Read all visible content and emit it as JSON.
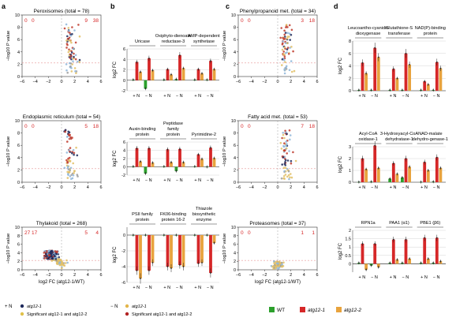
{
  "panel_letters": [
    "a",
    "b",
    "c",
    "d"
  ],
  "colors": {
    "wt": "#2ca02c",
    "atg12_1": "#d62728",
    "atg12_2": "#e8a33d",
    "gray_point": "#9e9e9e",
    "navy_point": "#1f2a5c",
    "sig_point": "#c0392b",
    "light_blue": "#8fb6d9",
    "gold_point": "#e2c066"
  },
  "volcano_axes": {
    "xlabel_main": "log",
    "xlabel_sub": "2",
    "xlabel_rest": " FC (atg12-1/WT)",
    "ylabel_pre": "−log",
    "ylabel_sub": "10",
    "ylabel_post": " P value",
    "xticks": [
      "−6",
      "−4",
      "−2",
      "0",
      "2",
      "4",
      "6"
    ],
    "yticks": [
      "0",
      "2",
      "4",
      "6",
      "8",
      "10"
    ]
  },
  "volcanos_a": [
    {
      "title": "Peroxisomes (total = 78)",
      "left_counts": [
        "0",
        "0"
      ],
      "right_counts": [
        "9",
        "38"
      ]
    },
    {
      "title": "Endoplasmic reticulum (total = 54)",
      "left_counts": [
        "0",
        "0"
      ],
      "right_counts": [
        "5",
        "18"
      ]
    },
    {
      "title": "Thylakoid (total = 268)",
      "left_counts": [
        "27",
        "17"
      ],
      "right_counts": [
        "5",
        "4"
      ]
    }
  ],
  "volcanos_c": [
    {
      "title": "Phenylpropanoid met. (total = 34)",
      "left_counts": [
        "0",
        "0"
      ],
      "right_counts": [
        "3",
        "18"
      ]
    },
    {
      "title": "Fatty acid met. (total = 53)",
      "left_counts": [
        "0",
        "0"
      ],
      "right_counts": [
        "7",
        "18"
      ]
    },
    {
      "title": "Proteasomes (total = 37)",
      "left_counts": [
        "0",
        "0"
      ],
      "right_counts": [
        "1",
        "1"
      ]
    }
  ],
  "bar_axis_label": {
    "pre": "log",
    "sub": "2",
    "post": " FC"
  },
  "bar_xlabels": [
    "+ N",
    "− N"
  ],
  "legend_a": {
    "n_plus": "+ N",
    "n_minus": "− N",
    "atg12_1": "atg12-1",
    "sig_both": "Significant atg12-1 and atg12-2"
  },
  "legend_bars": {
    "wt": "WT",
    "atg12_1": "atg12-1",
    "atg12_2": "atg12-2"
  },
  "chart_data": [
    {
      "type": "bar",
      "panel": "b1",
      "title": "Uricase",
      "ylim": [
        -2,
        6
      ],
      "yticks": [
        "-2",
        "0",
        "2",
        "4",
        "6"
      ],
      "categories": [
        "+ N",
        "− N"
      ],
      "series": [
        {
          "name": "WT",
          "values": [
            0.1,
            -1.6
          ]
        },
        {
          "name": "atg12-1",
          "values": [
            3.5,
            4.2
          ]
        },
        {
          "name": "atg12-2",
          "values": [
            1.6,
            1.9
          ]
        }
      ]
    },
    {
      "type": "bar",
      "panel": "b1",
      "title": "Oxiphyto-dienoate reductase-3",
      "ylim": [
        -2,
        6
      ],
      "categories": [
        "+ N",
        "− N"
      ],
      "series": [
        {
          "name": "WT",
          "values": [
            0.1,
            0.2
          ]
        },
        {
          "name": "atg12-1",
          "values": [
            2.1,
            4.8
          ]
        },
        {
          "name": "atg12-2",
          "values": [
            1.1,
            2.3
          ]
        }
      ]
    },
    {
      "type": "bar",
      "panel": "b1",
      "title": "AMP-dependent synthetase",
      "ylim": [
        -2,
        6
      ],
      "categories": [
        "+ N",
        "− N"
      ],
      "series": [
        {
          "name": "WT",
          "values": [
            0.1,
            0.1
          ]
        },
        {
          "name": "atg12-1",
          "values": [
            2.1,
            3.7
          ]
        },
        {
          "name": "atg12-2",
          "values": [
            1.3,
            2.1
          ]
        }
      ]
    },
    {
      "type": "bar",
      "panel": "b2",
      "title": "Auxin-binding protein",
      "ylim": [
        -2,
        6
      ],
      "yticks": [
        "-2",
        "0",
        "2",
        "4",
        "6"
      ],
      "categories": [
        "+ N",
        "− N"
      ],
      "series": [
        {
          "name": "WT",
          "values": [
            0.1,
            -1.6
          ]
        },
        {
          "name": "atg12-1",
          "values": [
            4.5,
            4.5
          ]
        },
        {
          "name": "atg12-2",
          "values": [
            1.3,
            1.0
          ]
        }
      ]
    },
    {
      "type": "bar",
      "panel": "b2",
      "title": "Peptidase family protein",
      "ylim": [
        -2,
        6
      ],
      "categories": [
        "+ N",
        "− N"
      ],
      "series": [
        {
          "name": "WT",
          "values": [
            0.1,
            -1.0
          ]
        },
        {
          "name": "atg12-1",
          "values": [
            4.2,
            4.3
          ]
        },
        {
          "name": "atg12-2",
          "values": [
            1.1,
            1.1
          ]
        }
      ]
    },
    {
      "type": "bar",
      "panel": "b2",
      "title": "Pyrimidine-2",
      "ylim": [
        -2,
        6
      ],
      "categories": [
        "+ N",
        "− N"
      ],
      "series": [
        {
          "name": "WT",
          "values": [
            0.1,
            0.0
          ]
        },
        {
          "name": "atg12-1",
          "values": [
            3.0,
            4.6
          ]
        },
        {
          "name": "atg12-2",
          "values": [
            1.9,
            2.1
          ]
        }
      ]
    },
    {
      "type": "bar",
      "panel": "b3",
      "title": "PSII family protein",
      "ylim": [
        -6,
        1
      ],
      "yticks": [
        "-6",
        "-4",
        "-2",
        "0"
      ],
      "categories": [
        "+ N",
        "− N"
      ],
      "series": [
        {
          "name": "WT",
          "values": [
            0.0,
            0.0
          ]
        },
        {
          "name": "atg12-1",
          "values": [
            -4.5,
            -4.5
          ]
        },
        {
          "name": "atg12-2",
          "values": [
            -5.5,
            -3.5
          ]
        }
      ]
    },
    {
      "type": "bar",
      "panel": "b3",
      "title": "FK06-binding protein 16-2",
      "ylim": [
        -6,
        1
      ],
      "categories": [
        "+ N",
        "− N"
      ],
      "series": [
        {
          "name": "WT",
          "values": [
            0.0,
            0.0
          ]
        },
        {
          "name": "atg12-1",
          "values": [
            -4.0,
            -3.8
          ]
        },
        {
          "name": "atg12-2",
          "values": [
            -4.2,
            -4.0
          ]
        }
      ]
    },
    {
      "type": "bar",
      "panel": "b3",
      "title": "Thiazole biosynthetic enzyme",
      "ylim": [
        -6,
        1
      ],
      "categories": [
        "+ N",
        "− N"
      ],
      "series": [
        {
          "name": "WT",
          "values": [
            0.0,
            0.0
          ]
        },
        {
          "name": "atg12-1",
          "values": [
            -3.6,
            -4.8
          ]
        },
        {
          "name": "atg12-2",
          "values": [
            -3.5,
            -1.0
          ]
        }
      ]
    },
    {
      "type": "bar",
      "panel": "d1",
      "title": "Leucoantho-cyanidin dioxygenase",
      "ylim": [
        0,
        8
      ],
      "yticks": [
        "0",
        "2",
        "4",
        "6",
        "8"
      ],
      "categories": [
        "+ N",
        "− N"
      ],
      "series": [
        {
          "name": "WT",
          "values": [
            0.1,
            0.1
          ]
        },
        {
          "name": "atg12-1",
          "values": [
            4.5,
            6.9
          ]
        },
        {
          "name": "atg12-2",
          "values": [
            2.8,
            5.4
          ]
        }
      ]
    },
    {
      "type": "bar",
      "panel": "d1",
      "title": "Glutathione-S transferase",
      "ylim": [
        0,
        8
      ],
      "categories": [
        "+ N",
        "− N"
      ],
      "series": [
        {
          "name": "WT",
          "values": [
            0.1,
            0.1
          ]
        },
        {
          "name": "atg12-1",
          "values": [
            3.5,
            6.0
          ]
        },
        {
          "name": "atg12-2",
          "values": [
            2.0,
            4.2
          ]
        }
      ]
    },
    {
      "type": "bar",
      "panel": "d1",
      "title": "NAD(P)-binding protein",
      "ylim": [
        0,
        8
      ],
      "categories": [
        "+ N",
        "− N"
      ],
      "series": [
        {
          "name": "WT",
          "values": [
            0.1,
            0.1
          ]
        },
        {
          "name": "atg12-1",
          "values": [
            1.5,
            4.6
          ]
        },
        {
          "name": "atg12-2",
          "values": [
            1.0,
            3.6
          ]
        }
      ]
    },
    {
      "type": "bar",
      "panel": "d2",
      "title": "Acyl-CoA oxidase-1",
      "ylim": [
        0,
        3
      ],
      "yticks": [
        "0",
        "1",
        "2",
        "3"
      ],
      "categories": [
        "+ N",
        "− N"
      ],
      "series": [
        {
          "name": "WT",
          "values": [
            0.02,
            0.05
          ]
        },
        {
          "name": "atg12-1",
          "values": [
            2.0,
            3.1
          ]
        },
        {
          "name": "atg12-2",
          "values": [
            1.1,
            1.2
          ]
        }
      ]
    },
    {
      "type": "bar",
      "panel": "d2",
      "title": "3-Hydroxyacyl-CoA dehydratase-1",
      "ylim": [
        0,
        3
      ],
      "categories": [
        "+ N",
        "− N"
      ],
      "series": [
        {
          "name": "WT",
          "values": [
            0.3,
            0.4
          ]
        },
        {
          "name": "atg12-1",
          "values": [
            1.6,
            2.0
          ]
        },
        {
          "name": "atg12-2",
          "values": [
            0.7,
            1.3
          ]
        }
      ]
    },
    {
      "type": "bar",
      "panel": "d2",
      "title": "NAD-malate dehydro-genase-1",
      "ylim": [
        0,
        3
      ],
      "categories": [
        "+ N",
        "− N"
      ],
      "series": [
        {
          "name": "WT",
          "values": [
            0.02,
            0.05
          ]
        },
        {
          "name": "atg12-1",
          "values": [
            1.7,
            2.1
          ]
        },
        {
          "name": "atg12-2",
          "values": [
            1.0,
            1.2
          ]
        }
      ]
    },
    {
      "type": "bar",
      "panel": "d3",
      "title": "RPN1a",
      "ylim": [
        -0.5,
        2
      ],
      "yticks": [
        "0",
        "0.5",
        "1",
        "1.5",
        "2"
      ],
      "categories": [
        "+ N",
        "− N"
      ],
      "series": [
        {
          "name": "WT",
          "values": [
            0.05,
            -0.1
          ]
        },
        {
          "name": "atg12-1",
          "values": [
            1.2,
            1.2
          ]
        },
        {
          "name": "atg12-2",
          "values": [
            -0.35,
            -0.2
          ]
        }
      ]
    },
    {
      "type": "bar",
      "panel": "d3",
      "title": "PAA1 (α1)",
      "ylim": [
        -0.5,
        2
      ],
      "categories": [
        "+ N",
        "− N"
      ],
      "series": [
        {
          "name": "WT",
          "values": [
            0.05,
            0.05
          ]
        },
        {
          "name": "atg12-1",
          "values": [
            1.45,
            1.45
          ]
        },
        {
          "name": "atg12-2",
          "values": [
            0.25,
            0.3
          ]
        }
      ]
    },
    {
      "type": "bar",
      "panel": "d3",
      "title": "PBE1 (β6)",
      "ylim": [
        -0.5,
        2
      ],
      "categories": [
        "+ N",
        "− N"
      ],
      "series": [
        {
          "name": "WT",
          "values": [
            0.05,
            0.05
          ]
        },
        {
          "name": "atg12-1",
          "values": [
            1.55,
            1.55
          ]
        },
        {
          "name": "atg12-2",
          "values": [
            0.3,
            0.15
          ]
        }
      ]
    }
  ]
}
